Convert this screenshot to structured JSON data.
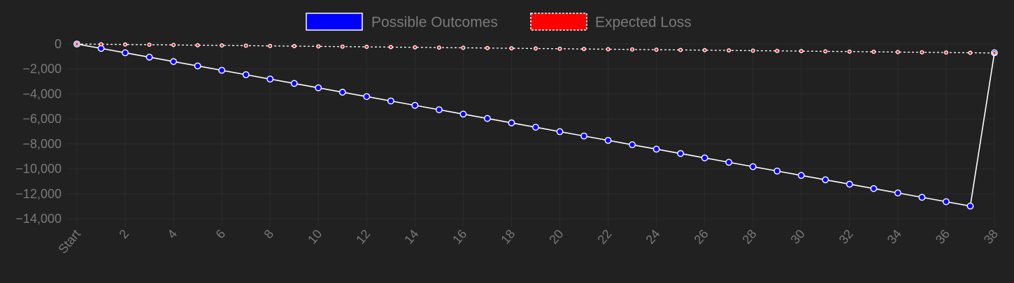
{
  "chart_data": {
    "type": "line",
    "title": "",
    "xlabel": "",
    "ylabel": "",
    "x_labels": [
      "Start",
      "2",
      "4",
      "6",
      "8",
      "10",
      "12",
      "14",
      "16",
      "18",
      "20",
      "22",
      "24",
      "26",
      "28",
      "30",
      "32",
      "34",
      "36",
      "38"
    ],
    "x_label_steps": [
      0,
      2,
      4,
      6,
      8,
      10,
      12,
      14,
      16,
      18,
      20,
      22,
      24,
      26,
      28,
      30,
      32,
      34,
      36,
      38
    ],
    "x": [
      0,
      1,
      2,
      3,
      4,
      5,
      6,
      7,
      8,
      9,
      10,
      11,
      12,
      13,
      14,
      15,
      16,
      17,
      18,
      19,
      20,
      21,
      22,
      23,
      24,
      25,
      26,
      27,
      28,
      29,
      30,
      31,
      32,
      33,
      34,
      35,
      36,
      37,
      38
    ],
    "xlim": [
      0,
      38
    ],
    "ylim": [
      -14000,
      0
    ],
    "y_ticks": [
      0,
      -2000,
      -4000,
      -6000,
      -8000,
      -10000,
      -12000,
      -14000
    ],
    "y_tick_labels": [
      "0",
      "−2,000",
      "−4,000",
      "−6,000",
      "−8,000",
      "−10,000",
      "−12,000",
      "−14,000"
    ],
    "grid": true,
    "legend_position": "top-center",
    "series": [
      {
        "name": "Possible Outcomes",
        "color": "#0000ff",
        "line_color": "#ffffff",
        "dashed": false,
        "values": [
          0,
          -351,
          -702,
          -1053,
          -1404,
          -1755,
          -2106,
          -2457,
          -2808,
          -3159,
          -3510,
          -3861,
          -4212,
          -4563,
          -4914,
          -5265,
          -5616,
          -5967,
          -6318,
          -6669,
          -7020,
          -7371,
          -7722,
          -8073,
          -8424,
          -8775,
          -9126,
          -9477,
          -9828,
          -10179,
          -10530,
          -10881,
          -11232,
          -11583,
          -11934,
          -12285,
          -12636,
          -12987,
          -702
        ]
      },
      {
        "name": "Expected Loss",
        "color": "#ff0000",
        "line_color": "#ffffff",
        "dashed": true,
        "values": [
          0,
          -19,
          -38,
          -57,
          -76,
          -95,
          -114,
          -133,
          -152,
          -171,
          -189,
          -208,
          -227,
          -246,
          -265,
          -284,
          -303,
          -322,
          -341,
          -360,
          -379,
          -398,
          -417,
          -436,
          -455,
          -474,
          -493,
          -512,
          -531,
          -550,
          -568,
          -587,
          -606,
          -625,
          -644,
          -663,
          -682,
          -701,
          -720
        ]
      }
    ]
  }
}
